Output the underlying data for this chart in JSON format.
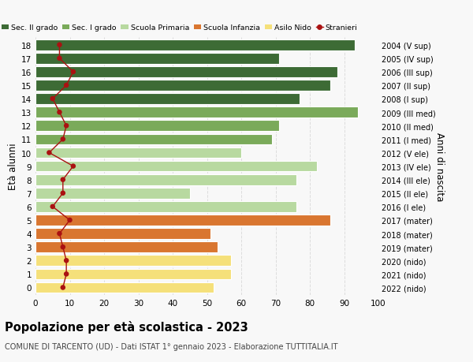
{
  "ages": [
    18,
    17,
    16,
    15,
    14,
    13,
    12,
    11,
    10,
    9,
    8,
    7,
    6,
    5,
    4,
    3,
    2,
    1,
    0
  ],
  "bar_values": [
    93,
    71,
    88,
    86,
    77,
    94,
    71,
    69,
    60,
    82,
    76,
    45,
    76,
    86,
    51,
    53,
    57,
    57,
    52
  ],
  "stranieri": [
    7,
    7,
    11,
    9,
    5,
    7,
    9,
    8,
    4,
    11,
    8,
    8,
    5,
    10,
    7,
    8,
    9,
    9,
    8
  ],
  "right_labels": [
    "2004 (V sup)",
    "2005 (IV sup)",
    "2006 (III sup)",
    "2007 (II sup)",
    "2008 (I sup)",
    "2009 (III med)",
    "2010 (II med)",
    "2011 (I med)",
    "2012 (V ele)",
    "2013 (IV ele)",
    "2014 (III ele)",
    "2015 (II ele)",
    "2016 (I ele)",
    "2017 (mater)",
    "2018 (mater)",
    "2019 (mater)",
    "2020 (nido)",
    "2021 (nido)",
    "2022 (nido)"
  ],
  "bar_colors": [
    "#3d6b35",
    "#3d6b35",
    "#3d6b35",
    "#3d6b35",
    "#3d6b35",
    "#7aaa5a",
    "#7aaa5a",
    "#7aaa5a",
    "#b8d9a0",
    "#b8d9a0",
    "#b8d9a0",
    "#b8d9a0",
    "#b8d9a0",
    "#d97630",
    "#d97630",
    "#d97630",
    "#f5e07a",
    "#f5e07a",
    "#f5e07a"
  ],
  "legend_labels": [
    "Sec. II grado",
    "Sec. I grado",
    "Scuola Primaria",
    "Scuola Infanzia",
    "Asilo Nido",
    "Stranieri"
  ],
  "legend_colors": [
    "#3d6b35",
    "#7aaa5a",
    "#b8d9a0",
    "#d97630",
    "#f5e07a",
    "#aa1111"
  ],
  "title_bold": "Popolazione per età scolastica - 2023",
  "subtitle": "COMUNE DI TARCENTO (UD) - Dati ISTAT 1° gennaio 2023 - Elaborazione TUTTITALIA.IT",
  "ylabel_left": "Età alunni",
  "ylabel_right": "Anni di nascita",
  "xlim": [
    0,
    100
  ],
  "xticks": [
    0,
    10,
    20,
    30,
    40,
    50,
    60,
    70,
    80,
    90,
    100
  ],
  "bg_color": "#f8f8f8",
  "grid_color": "#dddddd",
  "bar_height": 0.8,
  "stranieri_color": "#aa1111"
}
